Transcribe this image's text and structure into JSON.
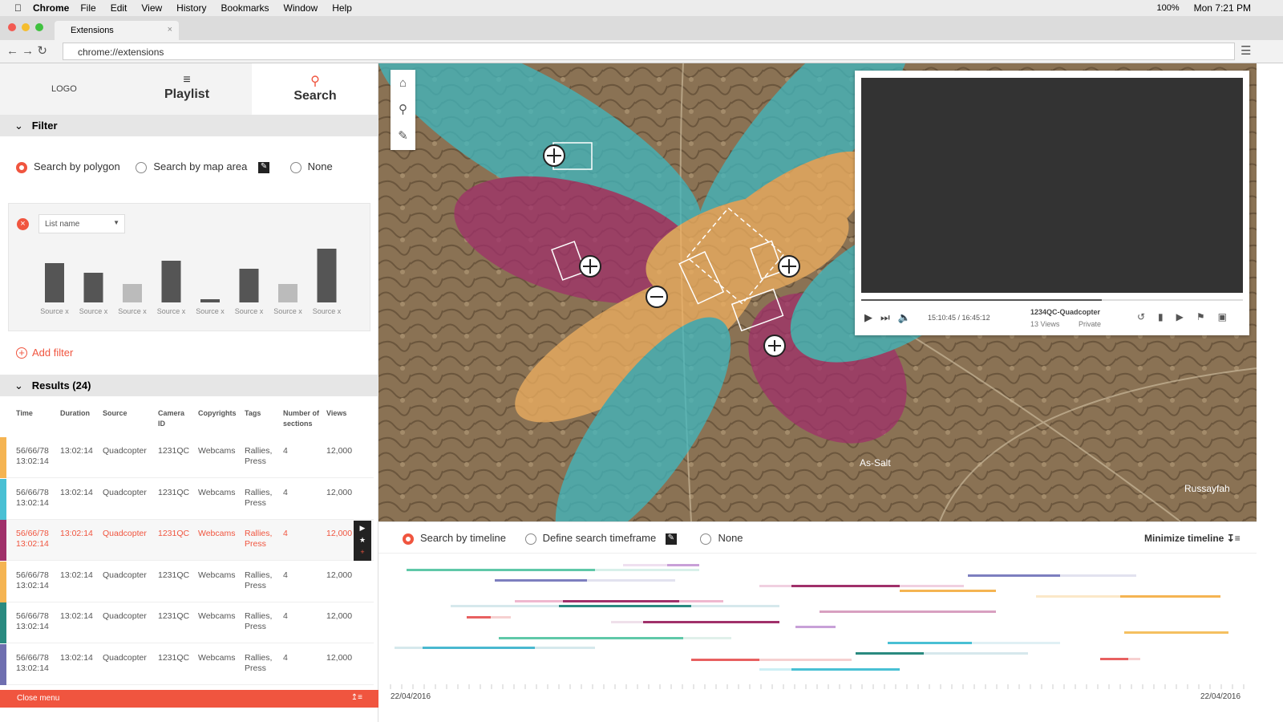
{
  "menubar": {
    "app": "Chrome",
    "menus": [
      "File",
      "Edit",
      "View",
      "History",
      "Bookmarks",
      "Window",
      "Help"
    ],
    "battery": "100%",
    "clock": "Mon 7:21 PM"
  },
  "browser": {
    "tab": "Extensions",
    "url": "chrome://extensions"
  },
  "sidebar": {
    "logo": "LOGO",
    "tabs": [
      "Playlist",
      "Search"
    ],
    "filter": {
      "title": "Filter",
      "options": [
        "Search by polygon",
        "Search by map area",
        "None"
      ],
      "list_name": "List name",
      "add": "Add filter"
    },
    "results": {
      "title": "Results (24)",
      "columns": [
        "Time",
        "Duration",
        "Source",
        "Camera ID",
        "Copyrights",
        "Tags",
        "Number of sections",
        "Views"
      ],
      "rows": [
        [
          "56/66/78 13:02:14",
          "13:02:14",
          "Quadcopter",
          "1231QC",
          "Webcams",
          "Rallies, Press",
          "4",
          "12,000"
        ],
        [
          "56/66/78 13:02:14",
          "13:02:14",
          "Quadcopter",
          "1231QC",
          "Webcams",
          "Rallies, Press",
          "4",
          "12,000"
        ],
        [
          "56/66/78 13:02:14",
          "13:02:14",
          "Quadcopter",
          "1231QC",
          "Webcams",
          "Rallies, Press",
          "4",
          "12,000"
        ],
        [
          "56/66/78 13:02:14",
          "13:02:14",
          "Quadcopter",
          "1231QC",
          "Webcams",
          "Rallies, Press",
          "4",
          "12,000"
        ],
        [
          "56/66/78 13:02:14",
          "13:02:14",
          "Quadcopter",
          "1231QC",
          "Webcams",
          "Rallies, Press",
          "4",
          "12,000"
        ],
        [
          "56/66/78 13:02:14",
          "13:02:14",
          "Quadcopter",
          "1231QC",
          "Webcams",
          "Rallies, Press",
          "4",
          "12,000"
        ]
      ]
    },
    "close": "Close menu"
  },
  "chart_data": {
    "type": "bar",
    "categories": [
      "Source x",
      "Source x",
      "Source x",
      "Source x",
      "Source x",
      "Source x",
      "Source x",
      "Source x"
    ],
    "values": [
      49,
      37,
      23,
      52,
      4,
      42,
      23,
      67
    ],
    "colors": [
      "#555555",
      "#555555",
      "#bbbbbb",
      "#555555",
      "#555555",
      "#555555",
      "#bbbbbb",
      "#555555"
    ]
  },
  "video": {
    "time": "15:10:45 / 16:45:12",
    "title": "1234QC-Quadcopter",
    "views": "13 Views",
    "privacy": "Private"
  },
  "map": {
    "labels": [
      "As-Salt",
      "Russayfah"
    ]
  },
  "timeline": {
    "options": [
      "Search by timeline",
      "Define search timeframe",
      "None"
    ],
    "minimize": "Minimize timeline",
    "start": "22/04/2016",
    "end": "22/04/2016"
  }
}
